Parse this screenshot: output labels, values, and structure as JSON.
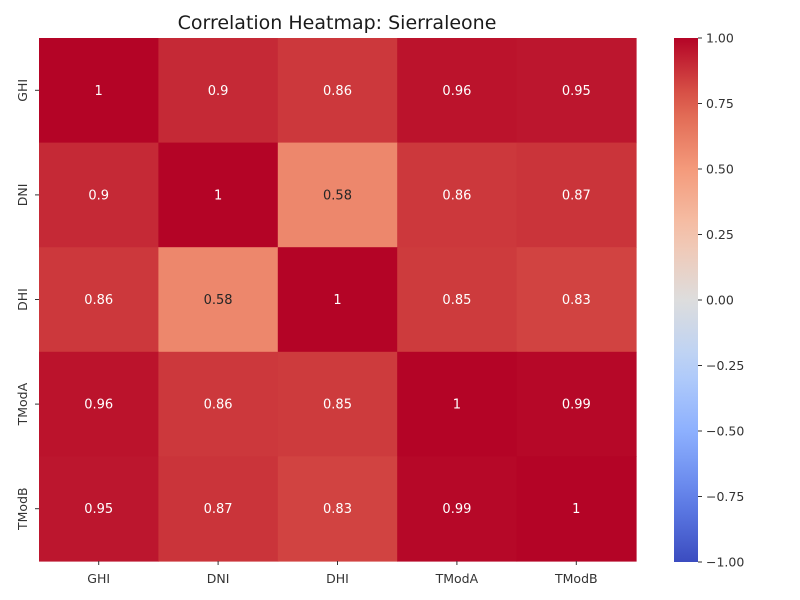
{
  "chart_data": {
    "type": "heatmap",
    "title": "Correlation Heatmap: Sierraleone",
    "x_labels": [
      "GHI",
      "DNI",
      "DHI",
      "TModA",
      "TModB"
    ],
    "y_labels": [
      "GHI",
      "DNI",
      "DHI",
      "TModA",
      "TModB"
    ],
    "values": [
      [
        1,
        0.9,
        0.86,
        0.96,
        0.95
      ],
      [
        0.9,
        1,
        0.58,
        0.86,
        0.87
      ],
      [
        0.86,
        0.58,
        1,
        0.85,
        0.83
      ],
      [
        0.96,
        0.86,
        0.85,
        1,
        0.99
      ],
      [
        0.95,
        0.87,
        0.83,
        0.99,
        1
      ]
    ],
    "colormap": "coolwarm",
    "vmin": -1,
    "vmax": 1,
    "colorbar_ticks": [
      "1.00",
      "0.75",
      "0.50",
      "0.25",
      "0.00",
      "−0.25",
      "−0.50",
      "−0.75",
      "−1.00"
    ],
    "colorbar_tick_values": [
      1,
      0.75,
      0.5,
      0.25,
      0,
      -0.25,
      -0.5,
      -0.75,
      -1
    ],
    "annotations": true
  }
}
